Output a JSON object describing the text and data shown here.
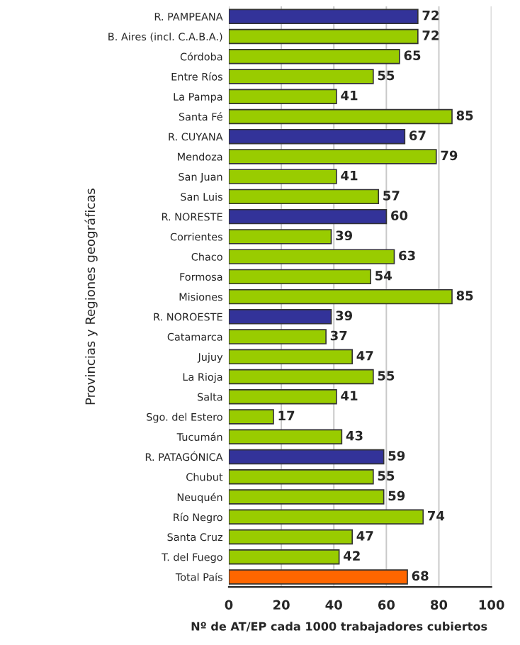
{
  "chart_data": {
    "type": "bar",
    "orientation": "horizontal",
    "xlabel": "Nº de AT/EP cada 1000 trabajadores cubiertos",
    "ylabel": "Provincias y Regiones geográficas",
    "categories": [
      "R. PAMPEANA",
      "B. Aires (incl. C.A.B.A.)",
      "Córdoba",
      "Entre Ríos",
      "La Pampa",
      "Santa Fé",
      "R. CUYANA",
      "Mendoza",
      "San Juan",
      "San Luis",
      "R. NORESTE",
      "Corrientes",
      "Chaco",
      "Formosa",
      "Misiones",
      "R. NOROESTE",
      "Catamarca",
      "Jujuy",
      "La Rioja",
      "Salta",
      "Sgo. del Estero",
      "Tucumán",
      "R. PATAGÓNICA",
      "Chubut",
      "Neuquén",
      "Río Negro",
      "Santa Cruz",
      "T. del Fuego",
      "Total País"
    ],
    "values": [
      72,
      72,
      65,
      55,
      41,
      85,
      67,
      79,
      41,
      57,
      60,
      39,
      63,
      54,
      85,
      39,
      37,
      47,
      55,
      41,
      17,
      43,
      59,
      55,
      59,
      74,
      47,
      42,
      68
    ],
    "colors": [
      "#333399",
      "#99cc00",
      "#99cc00",
      "#99cc00",
      "#99cc00",
      "#99cc00",
      "#333399",
      "#99cc00",
      "#99cc00",
      "#99cc00",
      "#333399",
      "#99cc00",
      "#99cc00",
      "#99cc00",
      "#99cc00",
      "#333399",
      "#99cc00",
      "#99cc00",
      "#99cc00",
      "#99cc00",
      "#99cc00",
      "#99cc00",
      "#333399",
      "#99cc00",
      "#99cc00",
      "#99cc00",
      "#99cc00",
      "#99cc00",
      "#ff6600"
    ],
    "xlim": [
      0,
      100
    ],
    "xticks": [
      0,
      20,
      40,
      60,
      80,
      100
    ],
    "grid": "x",
    "data_labels": true
  }
}
